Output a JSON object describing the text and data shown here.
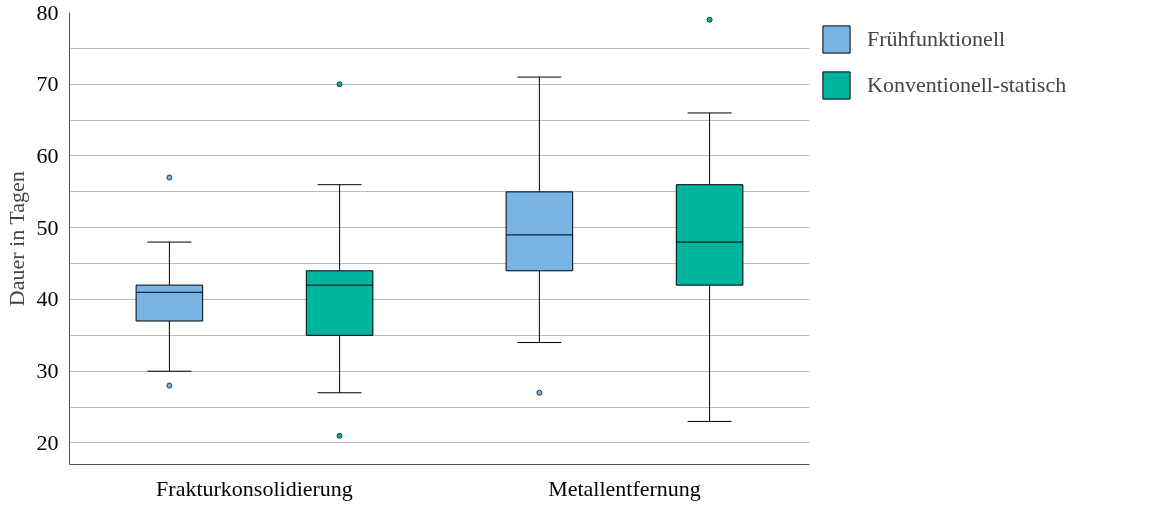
{
  "chart_data": {
    "type": "box",
    "ylabel": "Dauer in Tagen",
    "categories": [
      "Frakturkonsolidierung",
      "Metallentfernung"
    ],
    "ylim": [
      17,
      80
    ],
    "yticks": [
      20,
      {
        "value": 25,
        "label": null
      },
      30,
      {
        "value": 35,
        "label": null
      },
      40,
      {
        "value": 45,
        "label": null
      },
      50,
      {
        "value": 55,
        "label": null
      },
      60,
      {
        "value": 65,
        "label": null
      },
      70,
      {
        "value": 75,
        "label": null
      },
      80
    ],
    "grid": "y",
    "legend": "top right",
    "series": [
      {
        "name": "Frühfunktionell",
        "color": "#78b4e4",
        "boxes": [
          {
            "low": 30,
            "q1": 37,
            "median": 41,
            "q3": 42,
            "high": 48,
            "outliers": [
              57,
              28
            ]
          },
          {
            "low": 34,
            "q1": 44,
            "median": 49,
            "q3": 55,
            "high": 71,
            "outliers": [
              27
            ]
          }
        ]
      },
      {
        "name": "Konventionell-statisch",
        "color": "#00b4a0",
        "boxes": [
          {
            "low": 27,
            "q1": 35,
            "median": 42,
            "q3": 44,
            "high": 56,
            "outliers": [
              70,
              21
            ]
          },
          {
            "low": 23,
            "q1": 42,
            "median": 48,
            "q3": 56,
            "high": 66,
            "outliers": [
              79
            ]
          }
        ]
      }
    ]
  }
}
